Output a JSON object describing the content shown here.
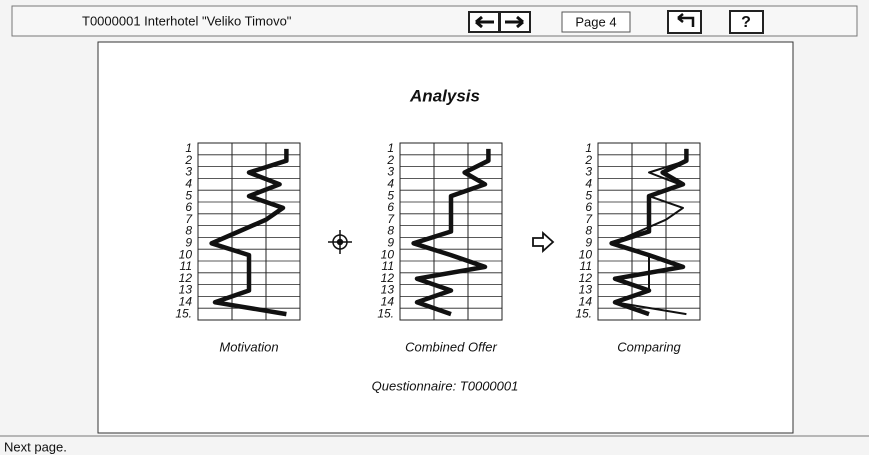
{
  "header": {
    "title": "T0000001  Interhotel \"Veliko Timovo\"",
    "page": "Page 4",
    "help": "?"
  },
  "panel": {
    "title": "Analysis",
    "row_labels": [
      "1",
      "2",
      "3",
      "4",
      "5",
      "6",
      "7",
      "8",
      "9",
      "10",
      "11",
      "12",
      "13",
      "14",
      "15."
    ],
    "xlim": [
      0,
      3
    ],
    "charts": [
      {
        "label": "Motivation",
        "values": [
          2.6,
          2.6,
          1.5,
          2.4,
          1.5,
          2.5,
          2.0,
          1.2,
          0.4,
          1.5,
          1.5,
          1.5,
          1.5,
          0.5,
          2.6
        ]
      },
      {
        "label": "Combined Offer",
        "values": [
          2.6,
          2.6,
          1.9,
          2.5,
          1.5,
          1.5,
          1.5,
          1.5,
          0.4,
          1.5,
          2.5,
          0.5,
          1.5,
          0.5,
          1.5
        ]
      },
      {
        "label": "Comparing",
        "compares": [
          0,
          1
        ]
      }
    ],
    "footer": "Questionnaire: T0000001"
  },
  "status": "Next page."
}
